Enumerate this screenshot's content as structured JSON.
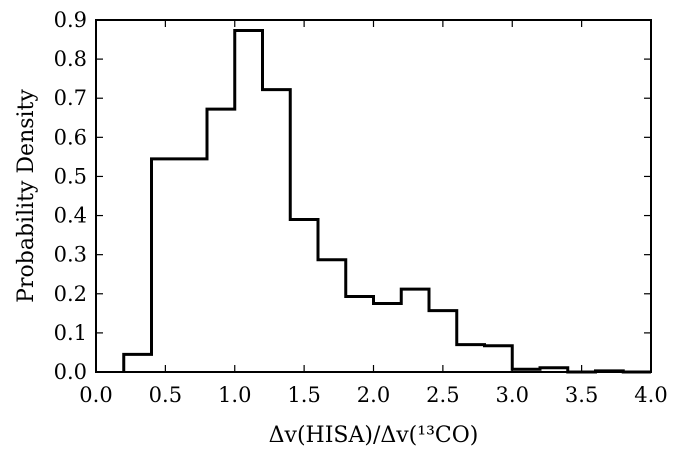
{
  "chart_data": {
    "type": "bar",
    "subtype": "step-histogram",
    "title": "",
    "xlabel": "Δv(HISA)/Δv(¹³CO)",
    "ylabel": "Probability Density",
    "xlim": [
      0.0,
      4.0
    ],
    "ylim": [
      0.0,
      0.9
    ],
    "xticks": [
      "0.0",
      "0.5",
      "1.0",
      "1.5",
      "2.0",
      "2.5",
      "3.0",
      "3.5",
      "4.0"
    ],
    "yticks": [
      "0.0",
      "0.1",
      "0.2",
      "0.3",
      "0.4",
      "0.5",
      "0.6",
      "0.7",
      "0.8",
      "0.9"
    ],
    "grid": false,
    "legend": null,
    "line_color": "#000000",
    "bins": [
      {
        "x0": 0.2,
        "x1": 0.4,
        "value": 0.045
      },
      {
        "x0": 0.4,
        "x1": 0.6,
        "value": 0.545
      },
      {
        "x0": 0.6,
        "x1": 0.8,
        "value": 0.545
      },
      {
        "x0": 0.8,
        "x1": 1.0,
        "value": 0.672
      },
      {
        "x0": 1.0,
        "x1": 1.2,
        "value": 0.873
      },
      {
        "x0": 1.2,
        "x1": 1.4,
        "value": 0.722
      },
      {
        "x0": 1.4,
        "x1": 1.6,
        "value": 0.39
      },
      {
        "x0": 1.6,
        "x1": 1.8,
        "value": 0.287
      },
      {
        "x0": 1.8,
        "x1": 2.0,
        "value": 0.193
      },
      {
        "x0": 2.0,
        "x1": 2.2,
        "value": 0.175
      },
      {
        "x0": 2.2,
        "x1": 2.4,
        "value": 0.212
      },
      {
        "x0": 2.4,
        "x1": 2.6,
        "value": 0.157
      },
      {
        "x0": 2.6,
        "x1": 2.8,
        "value": 0.07
      },
      {
        "x0": 2.8,
        "x1": 3.0,
        "value": 0.067
      },
      {
        "x0": 3.0,
        "x1": 3.2,
        "value": 0.007
      },
      {
        "x0": 3.2,
        "x1": 3.4,
        "value": 0.011
      },
      {
        "x0": 3.4,
        "x1": 3.6,
        "value": 0.0
      },
      {
        "x0": 3.6,
        "x1": 3.8,
        "value": 0.003
      },
      {
        "x0": 3.8,
        "x1": 4.0,
        "value": 0.0
      }
    ]
  }
}
